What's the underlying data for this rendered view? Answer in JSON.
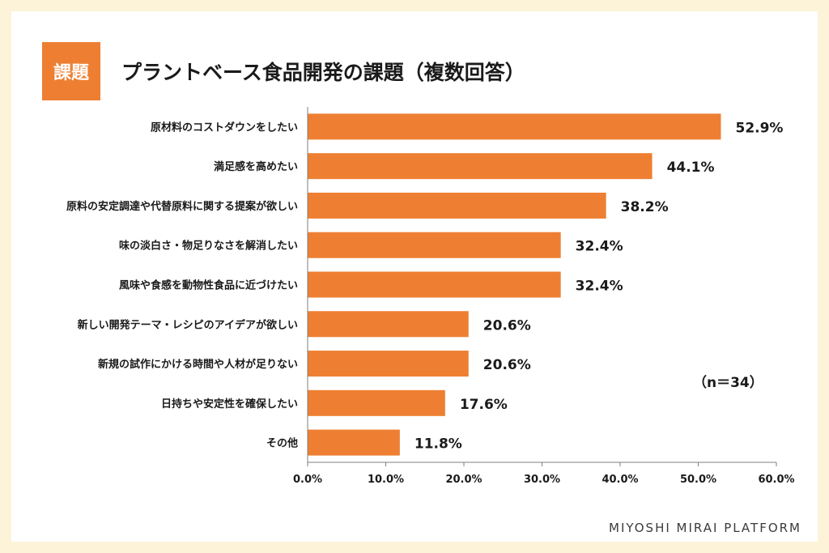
{
  "badge": "課題",
  "title": "プラントベース食品開発の課題（複数回答）",
  "footer": "MIYOSHI MIRAI PLATFORM",
  "colors": {
    "bar": "#ee7f32",
    "background": "#fdf3d8",
    "badge": "#ee7f32"
  },
  "chart_data": {
    "type": "bar",
    "orientation": "horizontal",
    "title": "プラントベース食品開発の課題（複数回答）",
    "categories": [
      "原材料のコストダウンをしたい",
      "満足感を高めたい",
      "原料の安定調達や代替原料に関する提案が欲しい",
      "味の淡白さ・物足りなさを解消したい",
      "風味や食感を動物性食品に近づけたい",
      "新しい開発テーマ・レシピのアイデアが欲しい",
      "新規の試作にかける時間や人材が足りない",
      "日持ちや安定性を確保したい",
      "その他"
    ],
    "values": [
      52.9,
      44.1,
      38.2,
      32.4,
      32.4,
      20.6,
      20.6,
      17.6,
      11.8
    ],
    "value_labels": [
      "52.9%",
      "44.1%",
      "38.2%",
      "32.4%",
      "32.4%",
      "20.6%",
      "20.6%",
      "17.6%",
      "11.8%"
    ],
    "xlim": [
      0,
      60
    ],
    "xticks": [
      0,
      10,
      20,
      30,
      40,
      50,
      60
    ],
    "xtick_labels": [
      "0.0%",
      "10.0%",
      "20.0%",
      "30.0%",
      "40.0%",
      "50.0%",
      "60.0%"
    ],
    "annotation": "（n＝34）",
    "grid": false
  }
}
